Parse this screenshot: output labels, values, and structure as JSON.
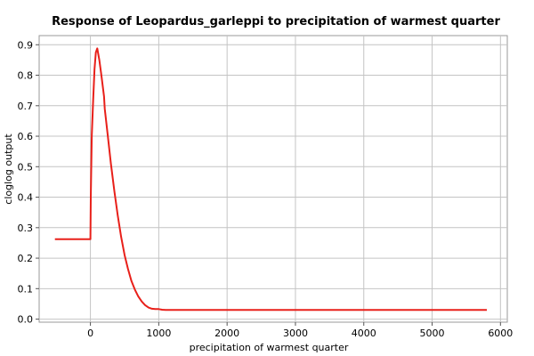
{
  "chart_data": {
    "type": "line",
    "title": "Response of Leopardus_garleppi to precipitation of warmest quarter",
    "xlabel": "precipitation of warmest quarter",
    "ylabel": "cloglog output",
    "xlim": [
      -750,
      6100
    ],
    "ylim": [
      -0.01,
      0.93
    ],
    "xticks": [
      0,
      1000,
      2000,
      3000,
      4000,
      5000,
      6000
    ],
    "yticks": [
      0.0,
      0.1,
      0.2,
      0.3,
      0.4,
      0.5,
      0.6,
      0.7,
      0.8,
      0.9
    ],
    "grid": true,
    "legend": "none",
    "series": [
      {
        "color": "#e8201a",
        "x": [
          -520,
          0,
          5,
          20,
          40,
          60,
          80,
          100,
          130,
          160,
          200,
          210,
          250,
          300,
          350,
          400,
          450,
          500,
          550,
          600,
          650,
          700,
          750,
          800,
          850,
          900,
          950,
          1000,
          1050,
          1100,
          5800
        ],
        "y": [
          0.262,
          0.262,
          0.4,
          0.6,
          0.72,
          0.82,
          0.875,
          0.888,
          0.85,
          0.8,
          0.73,
          0.69,
          0.61,
          0.51,
          0.42,
          0.34,
          0.27,
          0.21,
          0.165,
          0.125,
          0.097,
          0.075,
          0.058,
          0.046,
          0.038,
          0.034,
          0.033,
          0.033,
          0.031,
          0.03,
          0.03
        ]
      }
    ]
  }
}
